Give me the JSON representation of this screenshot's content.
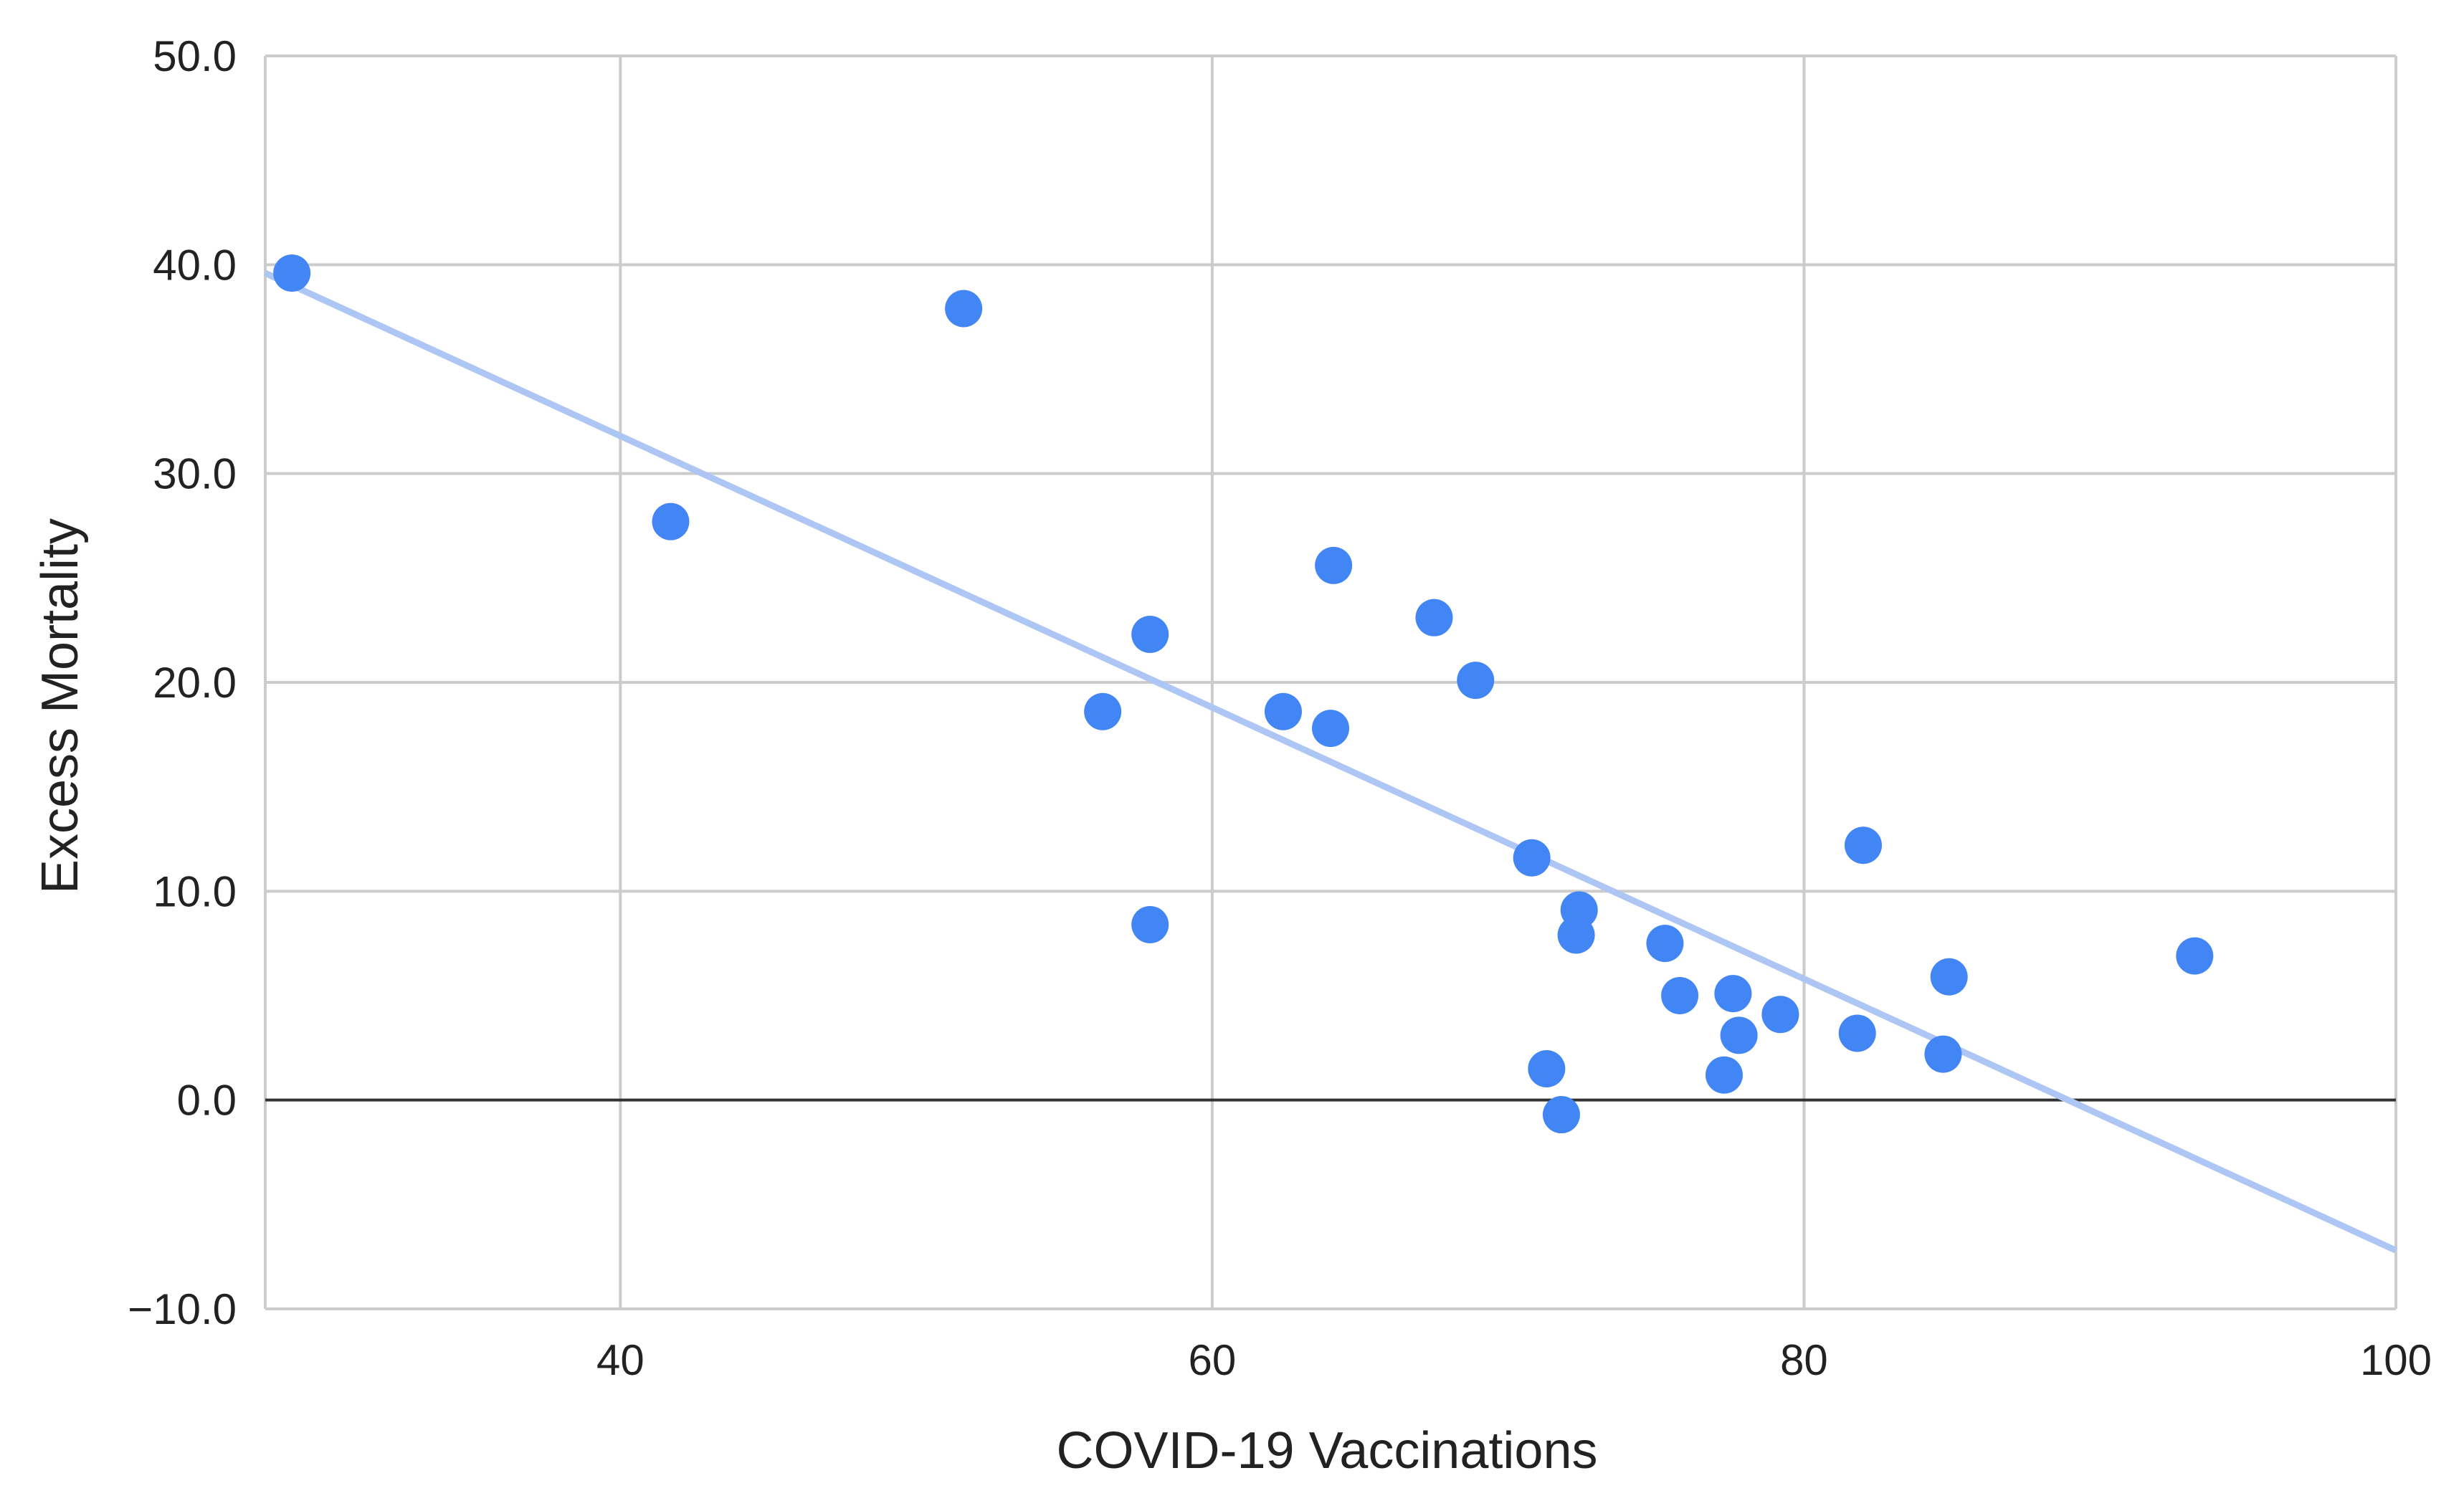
{
  "chart_data": {
    "type": "scatter",
    "title": "",
    "xlabel": "COVID-19 Vaccinations",
    "ylabel": "Excess Mortality",
    "xlim": [
      28,
      100
    ],
    "ylim": [
      -10,
      50
    ],
    "x_ticks": [
      40,
      60,
      80,
      100
    ],
    "x_tick_labels": [
      "40",
      "60",
      "80",
      "100"
    ],
    "y_ticks": [
      -10,
      0,
      10,
      20,
      30,
      40,
      50
    ],
    "y_tick_labels": [
      "−10.0",
      "0.0",
      "10.0",
      "20.0",
      "30.0",
      "40.0",
      "50.0"
    ],
    "grid": true,
    "legend": "none",
    "series": [
      {
        "name": "Excess Mortality",
        "color": "#4285f4",
        "points": [
          {
            "x": 28.9,
            "y": 39.6
          },
          {
            "x": 41.7,
            "y": 27.7
          },
          {
            "x": 51.6,
            "y": 37.9
          },
          {
            "x": 56.3,
            "y": 18.6
          },
          {
            "x": 57.9,
            "y": 22.3
          },
          {
            "x": 57.9,
            "y": 8.4
          },
          {
            "x": 62.4,
            "y": 18.6
          },
          {
            "x": 64.0,
            "y": 17.8
          },
          {
            "x": 64.1,
            "y": 25.6
          },
          {
            "x": 67.5,
            "y": 23.1
          },
          {
            "x": 68.9,
            "y": 20.1
          },
          {
            "x": 70.8,
            "y": 11.6
          },
          {
            "x": 71.3,
            "y": 1.5
          },
          {
            "x": 71.8,
            "y": -0.7
          },
          {
            "x": 72.3,
            "y": 7.9
          },
          {
            "x": 72.4,
            "y": 9.1
          },
          {
            "x": 75.3,
            "y": 7.5
          },
          {
            "x": 75.8,
            "y": 5.0
          },
          {
            "x": 77.3,
            "y": 1.2
          },
          {
            "x": 77.6,
            "y": 5.1
          },
          {
            "x": 77.8,
            "y": 3.1
          },
          {
            "x": 79.2,
            "y": 4.1
          },
          {
            "x": 81.8,
            "y": 3.2
          },
          {
            "x": 82.0,
            "y": 12.2
          },
          {
            "x": 84.7,
            "y": 2.2
          },
          {
            "x": 84.9,
            "y": 5.9
          },
          {
            "x": 93.2,
            "y": 6.9
          }
        ]
      }
    ],
    "trendline": {
      "type": "linear",
      "color": "#aec6f4",
      "x": [
        28,
        100
      ],
      "y": [
        39.6,
        -7.2
      ]
    }
  }
}
